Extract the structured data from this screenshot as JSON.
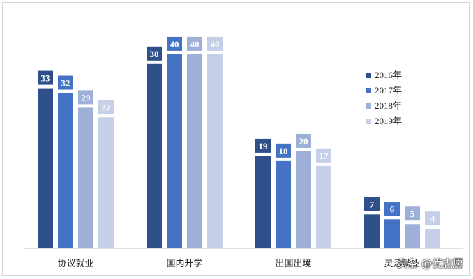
{
  "chart_data": {
    "type": "bar",
    "categories": [
      "协议就业",
      "国内升学",
      "出国出境",
      "灵活就业"
    ],
    "series": [
      {
        "name": "2016年",
        "values": [
          33,
          38,
          19,
          7
        ]
      },
      {
        "name": "2017年",
        "values": [
          32,
          40,
          18,
          6
        ]
      },
      {
        "name": "2018年",
        "values": [
          29,
          40,
          20,
          5
        ]
      },
      {
        "name": "2019年",
        "values": [
          27,
          40,
          17,
          4
        ]
      }
    ],
    "colors": [
      "#2f4f8a",
      "#4472c4",
      "#9fb0d8",
      "#c5d0e8"
    ],
    "label_box_colors": [
      "#2f4f8a",
      "#4472c4",
      "#9fb0d8",
      "#c5d0e8"
    ],
    "ylim": [
      0,
      42
    ],
    "legend_position": "right",
    "grid": false,
    "show_data_labels": true
  },
  "watermark": "头条 @优志愿"
}
